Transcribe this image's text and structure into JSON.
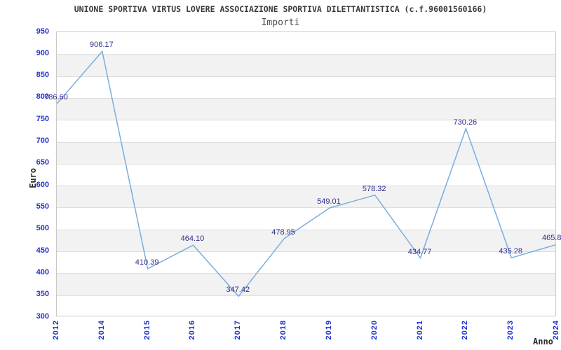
{
  "chart_data": {
    "type": "line",
    "title": "UNIONE SPORTIVA VIRTUS LOVERE ASSOCIAZIONE SPORTIVA DILETTANTISTICA (c.f.96001560166)",
    "subtitle": "Importi",
    "xlabel": "Anno",
    "ylabel": "Euro",
    "categories": [
      "2012",
      "2014",
      "2015",
      "2016",
      "2017",
      "2018",
      "2019",
      "2020",
      "2021",
      "2022",
      "2023",
      "2024"
    ],
    "series": [
      {
        "name": "Importi",
        "values": [
          786.6,
          906.17,
          410.39,
          464.1,
          347.42,
          478.95,
          549.01,
          578.32,
          434.77,
          730.26,
          435.28,
          465.8
        ]
      }
    ],
    "point_labels": [
      "786.60",
      "906.17",
      "410.39",
      "464.10",
      "347.42",
      "478.95",
      "549.01",
      "578.32",
      "434.77",
      "730.26",
      "435.28",
      "465.8"
    ],
    "ylim": [
      300,
      950
    ],
    "ytick_step": 50,
    "ytick_labels": [
      "300",
      "350",
      "400",
      "450",
      "500",
      "550",
      "600",
      "650",
      "700",
      "750",
      "800",
      "850",
      "900",
      "950"
    ],
    "grid": true,
    "banded_background": true,
    "legend_position": "none",
    "colors": {
      "line": "#7aaede",
      "tick_label": "#2233cc",
      "point_label": "#2e2e8e",
      "title": "#3a3a3a",
      "band": "#f2f2f2",
      "gridline": "#dedede",
      "frame": "#c9c9c9",
      "background": "#ffffff"
    }
  }
}
